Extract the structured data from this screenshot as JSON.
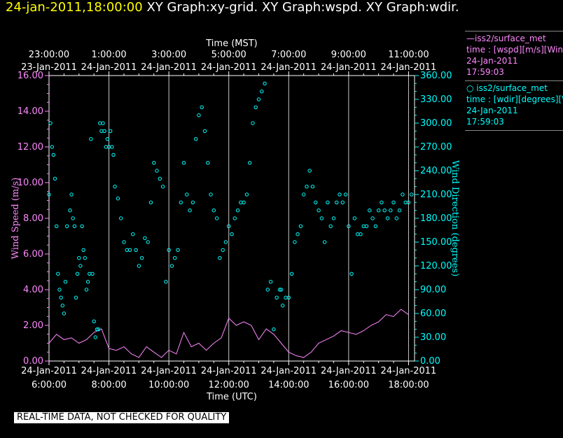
{
  "header": {
    "timestamp": "24-jan-2011,18:00:00",
    "graphs": "XY Graph:xy-grid.  XY Graph:wspd.  XY Graph:wdir."
  },
  "legend": {
    "wspd": {
      "line1": "—iss2/surface_met",
      "line2": "time : [wspd][m/s][Wind",
      "line3": "24-Jan-2011",
      "line4": "17:59:03"
    },
    "wdir": {
      "line1": "○ iss2/surface_met",
      "line2": "time : [wdir][degrees][W",
      "line3": "24-Jan-2011",
      "line4": "17:59:03"
    }
  },
  "footer": "REAL-TIME DATA, NOT CHECKED FOR QUALITY",
  "chart_data": {
    "type": "scatter",
    "top_axis": {
      "label": "Time (MST)",
      "ticks": [
        {
          "time": "23:00:00",
          "date": "23-Jan-2011"
        },
        {
          "time": "1:00:00",
          "date": "24-Jan-2011"
        },
        {
          "time": "3:00:00",
          "date": "24-Jan-2011"
        },
        {
          "time": "5:00:00",
          "date": "24-Jan-2011"
        },
        {
          "time": "7:00:00",
          "date": "24-Jan-2011"
        },
        {
          "time": "9:00:00",
          "date": "24-Jan-2011"
        },
        {
          "time": "11:00:00",
          "date": "24-Jan-2011"
        }
      ]
    },
    "bottom_axis": {
      "label": "Time (UTC)",
      "ticks": [
        {
          "time": "6:00:00",
          "date": "24-Jan-2011"
        },
        {
          "time": "8:00:00",
          "date": "24-Jan-2011"
        },
        {
          "time": "10:00:00",
          "date": "24-Jan-2011"
        },
        {
          "time": "12:00:00",
          "date": "24-Jan-2011"
        },
        {
          "time": "14:00:00",
          "date": "24-Jan-2011"
        },
        {
          "time": "16:00:00",
          "date": "24-Jan-2011"
        },
        {
          "time": "18:00:00",
          "date": "24-Jan-2011"
        }
      ],
      "xlim_hours_utc": [
        6,
        18.2
      ]
    },
    "left_axis": {
      "label": "Wind Speed (m/s)",
      "ylim": [
        0,
        16
      ],
      "ticks": [
        "0.00",
        "2.00",
        "4.00",
        "6.00",
        "8.00",
        "10.00",
        "12.00",
        "14.00",
        "16.00"
      ],
      "color": "#ff88ff"
    },
    "right_axis": {
      "label": "Wind Direction (degrees)",
      "ylim": [
        0,
        360
      ],
      "ticks": [
        "0.00",
        "30.00",
        "60.00",
        "90.00",
        "120.00",
        "150.00",
        "180.00",
        "210.00",
        "240.00",
        "270.00",
        "300.00",
        "330.00",
        "360.00"
      ],
      "color": "#00ffff"
    },
    "series": [
      {
        "name": "iss2/surface_met wspd",
        "kind": "line",
        "color": "#ff88ff",
        "x": [
          6.0,
          6.25,
          6.5,
          6.75,
          7.0,
          7.25,
          7.5,
          7.75,
          8.0,
          8.25,
          8.5,
          8.75,
          9.0,
          9.25,
          9.5,
          9.75,
          10.0,
          10.25,
          10.5,
          10.75,
          11.0,
          11.25,
          11.5,
          11.75,
          12.0,
          12.25,
          12.5,
          12.75,
          13.0,
          13.25,
          13.5,
          13.75,
          14.0,
          14.25,
          14.5,
          14.75,
          15.0,
          15.25,
          15.5,
          15.75,
          16.0,
          16.25,
          16.5,
          16.75,
          17.0,
          17.25,
          17.5,
          17.75,
          18.0
        ],
        "y": [
          1.0,
          1.5,
          1.2,
          1.3,
          1.0,
          1.2,
          1.6,
          1.8,
          0.7,
          0.6,
          0.8,
          0.4,
          0.2,
          0.8,
          0.5,
          0.2,
          0.6,
          0.4,
          1.6,
          0.8,
          1.0,
          0.6,
          1.0,
          1.3,
          2.4,
          2.0,
          2.2,
          2.0,
          1.2,
          1.8,
          1.5,
          1.0,
          0.5,
          0.3,
          0.2,
          0.5,
          1.0,
          1.2,
          1.4,
          1.7,
          1.6,
          1.5,
          1.7,
          2.0,
          2.2,
          2.6,
          2.5,
          2.9,
          2.6
        ]
      },
      {
        "name": "iss2/surface_met wdir",
        "kind": "scatter",
        "color": "#00ffff",
        "x": [
          6.0,
          6.05,
          6.1,
          6.15,
          6.2,
          6.25,
          6.3,
          6.35,
          6.4,
          6.45,
          6.5,
          6.55,
          6.6,
          6.7,
          6.75,
          6.8,
          6.85,
          6.9,
          6.95,
          7.0,
          7.05,
          7.1,
          7.15,
          7.2,
          7.25,
          7.3,
          7.35,
          7.4,
          7.45,
          7.5,
          7.55,
          7.6,
          7.65,
          7.7,
          7.75,
          7.8,
          7.85,
          7.9,
          7.95,
          8.0,
          8.05,
          8.1,
          8.15,
          8.2,
          8.3,
          8.4,
          8.5,
          8.6,
          8.7,
          8.8,
          8.9,
          9.0,
          9.1,
          9.2,
          9.3,
          9.4,
          9.5,
          9.6,
          9.7,
          9.8,
          9.9,
          10.0,
          10.1,
          10.2,
          10.3,
          10.4,
          10.5,
          10.6,
          10.7,
          10.8,
          10.9,
          11.0,
          11.1,
          11.2,
          11.3,
          11.4,
          11.5,
          11.6,
          11.7,
          11.8,
          11.9,
          12.0,
          12.1,
          12.2,
          12.3,
          12.4,
          12.5,
          12.6,
          12.7,
          12.8,
          12.9,
          13.0,
          13.1,
          13.2,
          13.3,
          13.4,
          13.5,
          13.6,
          13.7,
          13.75,
          13.8,
          13.9,
          14.0,
          14.1,
          14.2,
          14.3,
          14.4,
          14.5,
          14.6,
          14.7,
          14.8,
          14.9,
          15.0,
          15.1,
          15.2,
          15.3,
          15.4,
          15.5,
          15.6,
          15.7,
          15.8,
          15.9,
          16.0,
          16.1,
          16.2,
          16.3,
          16.4,
          16.5,
          16.6,
          16.7,
          16.8,
          16.9,
          17.0,
          17.1,
          17.2,
          17.3,
          17.4,
          17.5,
          17.6,
          17.7,
          17.8,
          17.9,
          18.0,
          18.1
        ],
        "y": [
          210,
          300,
          270,
          260,
          230,
          170,
          110,
          90,
          80,
          70,
          60,
          100,
          170,
          190,
          210,
          180,
          170,
          80,
          110,
          130,
          120,
          170,
          140,
          130,
          90,
          100,
          110,
          280,
          110,
          50,
          30,
          40,
          40,
          300,
          290,
          300,
          290,
          270,
          280,
          270,
          290,
          270,
          260,
          220,
          205,
          180,
          150,
          140,
          140,
          160,
          140,
          120,
          130,
          155,
          150,
          200,
          250,
          240,
          230,
          220,
          100,
          140,
          120,
          130,
          140,
          200,
          250,
          210,
          190,
          200,
          280,
          310,
          320,
          290,
          250,
          210,
          190,
          180,
          130,
          140,
          150,
          170,
          160,
          180,
          190,
          200,
          200,
          210,
          250,
          300,
          320,
          330,
          340,
          350,
          90,
          100,
          40,
          80,
          90,
          90,
          70,
          80,
          80,
          110,
          150,
          160,
          170,
          210,
          220,
          240,
          220,
          200,
          190,
          180,
          150,
          200,
          170,
          180,
          200,
          210,
          200,
          210,
          170,
          110,
          180,
          160,
          160,
          170,
          170,
          190,
          180,
          170,
          190,
          200,
          190,
          180,
          190,
          200,
          180,
          190,
          210,
          200,
          200,
          210
        ]
      }
    ],
    "grid": "vertical"
  }
}
